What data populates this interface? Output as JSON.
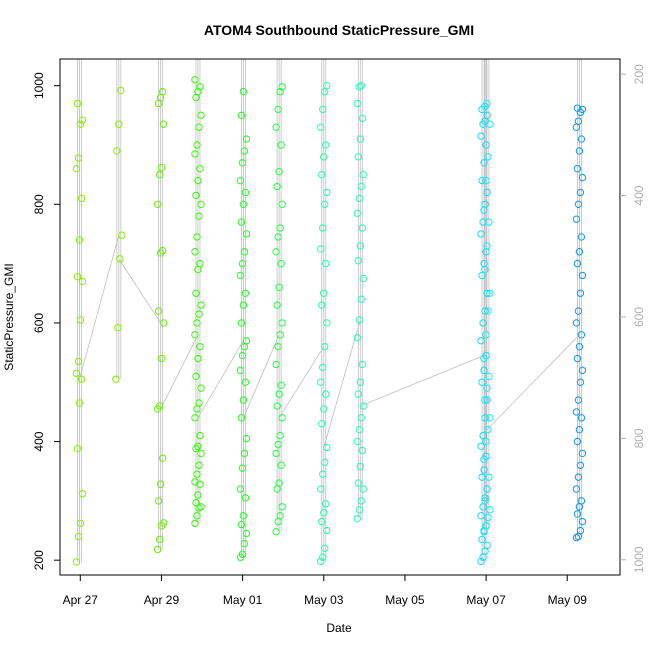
{
  "chart_data": {
    "type": "scatter",
    "title": "ATOM4 Southbound StaticPressure_GMI",
    "xlabel": "Date",
    "ylabel": "StaticPressure_GMI",
    "x_ticks": [
      {
        "day": 0,
        "label": "Apr 27"
      },
      {
        "day": 2,
        "label": "Apr 29"
      },
      {
        "day": 4,
        "label": "May 01"
      },
      {
        "day": 6,
        "label": "May 03"
      },
      {
        "day": 8,
        "label": "May 05"
      },
      {
        "day": 10,
        "label": "May 07"
      },
      {
        "day": 12,
        "label": "May 09"
      }
    ],
    "xlim_days": [
      -0.5,
      13.3
    ],
    "ylim": [
      175,
      1045
    ],
    "y_ticks": [
      200,
      400,
      600,
      800,
      1000
    ],
    "right_axis": {
      "ylim": [
        1025,
        175
      ],
      "ticks": [
        200,
        400,
        600,
        800,
        1000
      ],
      "color": "#b0b0b0"
    },
    "line_color": "#c0c0c0",
    "columns": [
      {
        "day": -0.02,
        "color": "#88ee00",
        "values": [
          197,
          240,
          262,
          312,
          388,
          465,
          505,
          515,
          535,
          605,
          670,
          678,
          740,
          810,
          860,
          878,
          935,
          942,
          970
        ]
      },
      {
        "day": 0.95,
        "color": "#88ee00",
        "values": [
          505,
          592,
          708,
          748,
          890,
          935,
          992
        ]
      },
      {
        "day": 1.98,
        "color": "#66f000",
        "values": [
          218,
          235,
          258,
          263,
          300,
          328,
          372,
          455,
          460,
          540,
          600,
          620,
          718,
          722,
          800,
          850,
          862,
          935,
          970,
          980,
          990
        ]
      },
      {
        "day": 2.9,
        "color": "#33ff00",
        "values": [
          262,
          275,
          288,
          290,
          297,
          310,
          328,
          332,
          345,
          360,
          380,
          388,
          392,
          410,
          440,
          455,
          465,
          490,
          510,
          540,
          560,
          580,
          600,
          615,
          630,
          650,
          690,
          700,
          720,
          745,
          780,
          800,
          815,
          840,
          860,
          885,
          900,
          930,
          950,
          980,
          990,
          998,
          1010
        ]
      },
      {
        "day": 4.02,
        "color": "#22ff22",
        "values": [
          205,
          210,
          228,
          245,
          260,
          275,
          305,
          320,
          355,
          380,
          405,
          440,
          470,
          500,
          520,
          545,
          560,
          570,
          600,
          630,
          650,
          680,
          700,
          720,
          750,
          770,
          800,
          820,
          840,
          870,
          890,
          910,
          950,
          990
        ]
      },
      {
        "day": 4.9,
        "color": "#22ff44",
        "values": [
          248,
          265,
          275,
          290,
          320,
          330,
          360,
          380,
          395,
          410,
          440,
          460,
          480,
          495,
          530,
          560,
          580,
          600,
          630,
          660,
          700,
          720,
          745,
          760,
          800,
          830,
          855,
          900,
          930,
          960,
          990,
          998
        ]
      },
      {
        "day": 6.0,
        "color": "#22ffaa",
        "values": [
          198,
          205,
          220,
          250,
          265,
          280,
          295,
          320,
          345,
          365,
          390,
          430,
          455,
          480,
          500,
          525,
          560,
          600,
          630,
          650,
          700,
          725,
          760,
          800,
          820,
          850,
          880,
          900,
          930,
          960,
          990,
          1000
        ]
      },
      {
        "day": 6.9,
        "color": "#22ffbb",
        "values": [
          270,
          285,
          300,
          320,
          330,
          358,
          385,
          400,
          420,
          440,
          460,
          480,
          500,
          530,
          575,
          605,
          640,
          675,
          705,
          730,
          760,
          785,
          810,
          830,
          850,
          880,
          910,
          945,
          970,
          998,
          1000
        ]
      },
      {
        "day": 9.95,
        "color": "#11ddff",
        "values": [
          198,
          205,
          215,
          225,
          235,
          248,
          258,
          275,
          290,
          305,
          320,
          340,
          352,
          375,
          392,
          410,
          440,
          470,
          500,
          520,
          545,
          570,
          600,
          620,
          650,
          680,
          700,
          720,
          750,
          770,
          800,
          820,
          840,
          870,
          900,
          915,
          935,
          940,
          950,
          960
        ]
      },
      {
        "day": 10.02,
        "color": "#11eeff",
        "values": [
          250,
          258,
          272,
          285,
          300,
          320,
          340,
          370,
          400,
          420,
          440,
          470,
          490,
          510,
          540,
          580,
          620,
          650,
          690,
          730,
          770,
          790,
          840,
          880,
          935,
          965,
          970
        ]
      },
      {
        "day": 12.3,
        "color": "#1199ee",
        "values": [
          238,
          240,
          250,
          265,
          278,
          290,
          300,
          320,
          340,
          360,
          380,
          400,
          420,
          440,
          450,
          470,
          500,
          520,
          540,
          560,
          580,
          600,
          620,
          650,
          680,
          700,
          720,
          745,
          775,
          800,
          820,
          845,
          860,
          890,
          910,
          930,
          940,
          955,
          960,
          962
        ]
      }
    ]
  }
}
